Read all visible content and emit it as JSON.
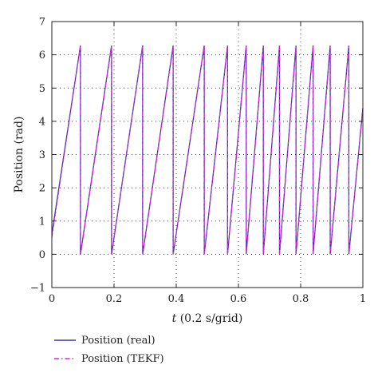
{
  "chart_data": {
    "type": "line",
    "xlabel_italic": "t",
    "xlabel_rest": " (0.2 s/grid)",
    "ylabel": "Position (rad)",
    "xlim": [
      0,
      1
    ],
    "ylim": [
      -1,
      7
    ],
    "x_ticks": [
      0,
      0.2,
      0.4,
      0.6,
      0.8,
      1
    ],
    "x_tick_labels": [
      "0",
      "0.2",
      "0.4",
      "0.6",
      "0.8",
      "1"
    ],
    "y_ticks": [
      -1,
      0,
      1,
      2,
      3,
      4,
      5,
      6,
      7
    ],
    "y_tick_labels": [
      "−1",
      "0",
      "1",
      "2",
      "3",
      "4",
      "5",
      "6",
      "7"
    ],
    "grid": "dotted",
    "legend_position": "bottom-left outside",
    "series": [
      {
        "name": "Position (real)",
        "color": "#3a3a9a",
        "style": "solid",
        "points": [
          [
            0,
            0.6
          ],
          [
            0.092,
            6.28
          ],
          [
            0.092,
            0
          ],
          [
            0.192,
            6.28
          ],
          [
            0.192,
            0
          ],
          [
            0.292,
            6.28
          ],
          [
            0.292,
            0
          ],
          [
            0.39,
            6.28
          ],
          [
            0.39,
            0
          ],
          [
            0.49,
            6.28
          ],
          [
            0.49,
            0
          ],
          [
            0.565,
            6.28
          ],
          [
            0.565,
            0
          ],
          [
            0.625,
            6.28
          ],
          [
            0.625,
            0
          ],
          [
            0.68,
            6.28
          ],
          [
            0.68,
            0
          ],
          [
            0.732,
            6.28
          ],
          [
            0.732,
            0
          ],
          [
            0.785,
            6.28
          ],
          [
            0.785,
            0
          ],
          [
            0.84,
            6.28
          ],
          [
            0.84,
            0
          ],
          [
            0.895,
            6.28
          ],
          [
            0.895,
            0
          ],
          [
            0.955,
            6.28
          ],
          [
            0.955,
            0
          ],
          [
            1.0,
            4.4
          ]
        ]
      },
      {
        "name": "Position (TEKF)",
        "color": "#e020e0",
        "style": "dash-dot",
        "points": [
          [
            0,
            0.5
          ],
          [
            0.092,
            6.28
          ],
          [
            0.092,
            0
          ],
          [
            0.192,
            6.28
          ],
          [
            0.192,
            0
          ],
          [
            0.292,
            6.28
          ],
          [
            0.292,
            0
          ],
          [
            0.39,
            6.28
          ],
          [
            0.39,
            0
          ],
          [
            0.49,
            6.28
          ],
          [
            0.49,
            0
          ],
          [
            0.565,
            6.28
          ],
          [
            0.565,
            0
          ],
          [
            0.625,
            6.28
          ],
          [
            0.625,
            0
          ],
          [
            0.68,
            6.28
          ],
          [
            0.68,
            0
          ],
          [
            0.732,
            6.28
          ],
          [
            0.732,
            0
          ],
          [
            0.785,
            6.28
          ],
          [
            0.785,
            0
          ],
          [
            0.84,
            6.28
          ],
          [
            0.84,
            0
          ],
          [
            0.895,
            6.28
          ],
          [
            0.895,
            0
          ],
          [
            0.955,
            6.28
          ],
          [
            0.955,
            0
          ],
          [
            1.0,
            4.4
          ]
        ]
      }
    ]
  }
}
